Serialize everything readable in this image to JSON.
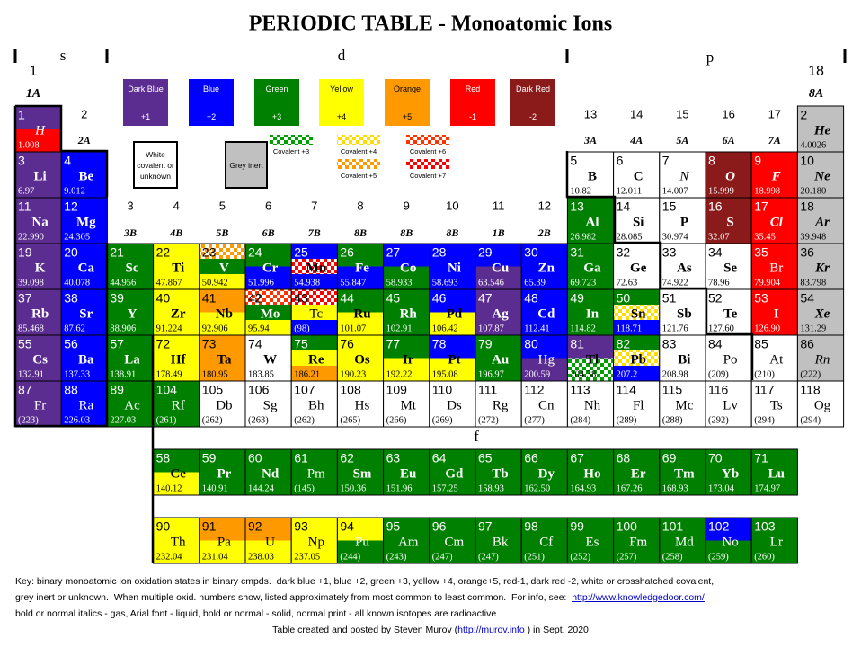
{
  "title": "PERIODIC TABLE - Monoatomic Ions",
  "blocks": [
    "s",
    "d",
    "p",
    "f"
  ],
  "group_numbers": [
    1,
    2,
    3,
    4,
    5,
    6,
    7,
    8,
    9,
    10,
    11,
    12,
    13,
    14,
    15,
    16,
    17,
    18
  ],
  "group_letters": [
    "1A",
    "2A",
    "3B",
    "4B",
    "5B",
    "6B",
    "7B",
    "8B",
    "8B",
    "8B",
    "1B",
    "2B",
    "3A",
    "4A",
    "5A",
    "6A",
    "7A",
    "8A"
  ],
  "legend": [
    {
      "name": "Dark Blue",
      "charge": "+1",
      "color": "#5c2d91"
    },
    {
      "name": "Blue",
      "charge": "+2",
      "color": "#0000ff"
    },
    {
      "name": "Green",
      "charge": "+3",
      "color": "#008000"
    },
    {
      "name": "Yellow",
      "charge": "+4",
      "color": "#ffff00"
    },
    {
      "name": "Orange",
      "charge": "+5",
      "color": "#ff9900"
    },
    {
      "name": "Red",
      "charge": "-1",
      "color": "#ff0000"
    },
    {
      "name": "Dark Red",
      "charge": "-2",
      "color": "#8b1a1a"
    }
  ],
  "legend_other": [
    {
      "name": "White covalent or unknown",
      "color": "#ffffff"
    },
    {
      "name": "Grey inert",
      "color": "#c0c0c0"
    }
  ],
  "covalent": [
    {
      "name": "Covalent +3",
      "color": "#00a000"
    },
    {
      "name": "Covalent +4",
      "color": "#ffdd00"
    },
    {
      "name": "Covalent +6",
      "color": "#ff3300"
    },
    {
      "name": "Covalent +5",
      "color": "#ff9900"
    },
    {
      "name": "Covalent +7",
      "color": "#ff0000"
    }
  ],
  "elements": [
    {
      "n": 1,
      "s": "H",
      "m": "1.008",
      "c": [
        "#5c2d91",
        "#ff0000"
      ],
      "f": "i"
    },
    {
      "n": 2,
      "s": "He",
      "m": "4.0026",
      "c": [
        "#c0c0c0"
      ],
      "f": "bi"
    },
    {
      "n": 3,
      "s": "Li",
      "m": "6.97",
      "c": [
        "#5c2d91"
      ],
      "f": "b"
    },
    {
      "n": 4,
      "s": "Be",
      "m": "9.012",
      "c": [
        "#0000ff"
      ],
      "f": "b"
    },
    {
      "n": 5,
      "s": "B",
      "m": "10.82",
      "c": [
        "#ffffff"
      ],
      "f": "b"
    },
    {
      "n": 6,
      "s": "C",
      "m": "12.011",
      "c": [
        "#ffffff"
      ],
      "f": "b"
    },
    {
      "n": 7,
      "s": "N",
      "m": "14.007",
      "c": [
        "#ffffff"
      ],
      "f": "i"
    },
    {
      "n": 8,
      "s": "O",
      "m": "15.999",
      "c": [
        "#8b1a1a"
      ],
      "f": "bi"
    },
    {
      "n": 9,
      "s": "F",
      "m": "18.998",
      "c": [
        "#ff0000"
      ],
      "f": "bi"
    },
    {
      "n": 10,
      "s": "Ne",
      "m": "20.180",
      "c": [
        "#c0c0c0"
      ],
      "f": "bi"
    },
    {
      "n": 11,
      "s": "Na",
      "m": "22.990",
      "c": [
        "#5c2d91"
      ],
      "f": "b"
    },
    {
      "n": 12,
      "s": "Mg",
      "m": "24.305",
      "c": [
        "#0000ff"
      ],
      "f": "b"
    },
    {
      "n": 13,
      "s": "Al",
      "m": "26.982",
      "c": [
        "#008000"
      ],
      "f": "b"
    },
    {
      "n": 14,
      "s": "Si",
      "m": "28.085",
      "c": [
        "#ffffff"
      ],
      "f": "b"
    },
    {
      "n": 15,
      "s": "P",
      "m": "30.974",
      "c": [
        "#ffffff"
      ],
      "f": "b"
    },
    {
      "n": 16,
      "s": "S",
      "m": "32.07",
      "c": [
        "#8b1a1a"
      ],
      "f": "b"
    },
    {
      "n": 17,
      "s": "Cl",
      "m": "35.45",
      "c": [
        "#ff0000"
      ],
      "f": "bi"
    },
    {
      "n": 18,
      "s": "Ar",
      "m": "39.948",
      "c": [
        "#c0c0c0"
      ],
      "f": "bi"
    },
    {
      "n": 19,
      "s": "K",
      "m": "39.098",
      "c": [
        "#5c2d91"
      ],
      "f": "b"
    },
    {
      "n": 20,
      "s": "Ca",
      "m": "40.078",
      "c": [
        "#0000ff"
      ],
      "f": "b"
    },
    {
      "n": 21,
      "s": "Sc",
      "m": "44.956",
      "c": [
        "#008000"
      ],
      "f": "b"
    },
    {
      "n": 22,
      "s": "Ti",
      "m": "47.867",
      "c": [
        "#ffff00"
      ],
      "f": "b"
    },
    {
      "n": 23,
      "s": "V",
      "m": "50.942",
      "c": [
        {
          "hatch": "#ff9900"
        },
        "#008000",
        "#ffff00"
      ],
      "f": "b"
    },
    {
      "n": 24,
      "s": "Cr",
      "m": "51.996",
      "c": [
        "#008000",
        "#0000ff"
      ],
      "f": "b"
    },
    {
      "n": 25,
      "s": "Mn",
      "m": "54.938",
      "c": [
        "#0000ff",
        {
          "hatch": "#ff0000"
        },
        "#0000ff"
      ],
      "f": "b"
    },
    {
      "n": 26,
      "s": "Fe",
      "m": "55.847",
      "c": [
        "#008000",
        "#0000ff"
      ],
      "f": "b"
    },
    {
      "n": 27,
      "s": "Co",
      "m": "58.933",
      "c": [
        "#0000ff",
        "#008000"
      ],
      "f": "b"
    },
    {
      "n": 28,
      "s": "Ni",
      "m": "58.693",
      "c": [
        "#0000ff"
      ],
      "f": "b"
    },
    {
      "n": 29,
      "s": "Cu",
      "m": "63.546",
      "c": [
        "#0000ff",
        "#5c2d91"
      ],
      "f": "b"
    },
    {
      "n": 30,
      "s": "Zn",
      "m": "65.39",
      "c": [
        "#0000ff"
      ],
      "f": "b"
    },
    {
      "n": 31,
      "s": "Ga",
      "m": "69.723",
      "c": [
        "#008000"
      ],
      "f": "b"
    },
    {
      "n": 32,
      "s": "Ge",
      "m": "72.63",
      "c": [
        "#ffffff"
      ],
      "f": "b"
    },
    {
      "n": 33,
      "s": "As",
      "m": "74.922",
      "c": [
        "#ffffff"
      ],
      "f": "b"
    },
    {
      "n": 34,
      "s": "Se",
      "m": "78.96",
      "c": [
        "#ffffff"
      ],
      "f": "b"
    },
    {
      "n": 35,
      "s": "Br",
      "m": "79.904",
      "c": [
        "#ff0000"
      ]
    },
    {
      "n": 36,
      "s": "Kr",
      "m": "83.798",
      "c": [
        "#c0c0c0"
      ],
      "f": "bi"
    },
    {
      "n": 37,
      "s": "Rb",
      "m": "85.468",
      "c": [
        "#5c2d91"
      ],
      "f": "b"
    },
    {
      "n": 38,
      "s": "Sr",
      "m": "87.62",
      "c": [
        "#0000ff"
      ],
      "f": "b"
    },
    {
      "n": 39,
      "s": "Y",
      "m": "88.906",
      "c": [
        "#008000"
      ],
      "f": "b"
    },
    {
      "n": 40,
      "s": "Zr",
      "m": "91.224",
      "c": [
        "#ffff00"
      ],
      "f": "b"
    },
    {
      "n": 41,
      "s": "Nb",
      "m": "92.906",
      "c": [
        "#ff9900",
        "#ffff00"
      ],
      "f": "b"
    },
    {
      "n": 42,
      "s": "Mo",
      "m": "95.94",
      "c": [
        {
          "hatch": "#ff3300"
        },
        "#008000",
        "#ffff00"
      ],
      "f": "b"
    },
    {
      "n": 43,
      "s": "Tc",
      "m": "(98)",
      "c": [
        {
          "hatch": "#ff0000"
        },
        "#ffff00",
        "#0000ff"
      ]
    },
    {
      "n": 44,
      "s": "Ru",
      "m": "101.07",
      "c": [
        "#008000",
        "#ffff00"
      ],
      "f": "b"
    },
    {
      "n": 45,
      "s": "Rh",
      "m": "102.91",
      "c": [
        "#008000"
      ],
      "f": "b"
    },
    {
      "n": 46,
      "s": "Pd",
      "m": "106.42",
      "c": [
        "#0000ff",
        "#ffff00"
      ],
      "f": "b"
    },
    {
      "n": 47,
      "s": "Ag",
      "m": "107.87",
      "c": [
        "#5c2d91"
      ],
      "f": "b"
    },
    {
      "n": 48,
      "s": "Cd",
      "m": "112.41",
      "c": [
        "#0000ff"
      ],
      "f": "b"
    },
    {
      "n": 49,
      "s": "In",
      "m": "114.82",
      "c": [
        "#008000"
      ],
      "f": "b"
    },
    {
      "n": 50,
      "s": "Sn",
      "m": "118.71",
      "c": [
        "#008000",
        {
          "hatch": "#ffdd00"
        },
        "#0000ff"
      ],
      "f": "b"
    },
    {
      "n": 51,
      "s": "Sb",
      "m": "121.76",
      "c": [
        "#ffffff"
      ],
      "f": "b"
    },
    {
      "n": 52,
      "s": "Te",
      "m": "127.60",
      "c": [
        "#ffffff"
      ],
      "f": "b"
    },
    {
      "n": 53,
      "s": "I",
      "m": "126.90",
      "c": [
        "#ff0000"
      ],
      "f": "b"
    },
    {
      "n": 54,
      "s": "Xe",
      "m": "131.29",
      "c": [
        "#c0c0c0"
      ],
      "f": "bi"
    },
    {
      "n": 55,
      "s": "Cs",
      "m": "132.91",
      "c": [
        "#5c2d91"
      ],
      "f": "b"
    },
    {
      "n": 56,
      "s": "Ba",
      "m": "137.33",
      "c": [
        "#0000ff"
      ],
      "f": "b"
    },
    {
      "n": 57,
      "s": "La",
      "m": "138.91",
      "c": [
        "#008000"
      ],
      "f": "b"
    },
    {
      "n": 58,
      "s": "Ce",
      "m": "140.12",
      "c": [
        "#008000",
        "#ffff00"
      ],
      "f": "b"
    },
    {
      "n": 59,
      "s": "Pr",
      "m": "140.91",
      "c": [
        "#008000"
      ],
      "f": "b"
    },
    {
      "n": 60,
      "s": "Nd",
      "m": "144.24",
      "c": [
        "#008000"
      ],
      "f": "b"
    },
    {
      "n": 61,
      "s": "Pm",
      "m": "(145)",
      "c": [
        "#008000"
      ]
    },
    {
      "n": 62,
      "s": "Sm",
      "m": "150.36",
      "c": [
        "#008000"
      ],
      "f": "b"
    },
    {
      "n": 63,
      "s": "Eu",
      "m": "151.96",
      "c": [
        "#008000"
      ],
      "f": "b"
    },
    {
      "n": 64,
      "s": "Gd",
      "m": "157.25",
      "c": [
        "#008000"
      ],
      "f": "b"
    },
    {
      "n": 65,
      "s": "Tb",
      "m": "158.93",
      "c": [
        "#008000"
      ],
      "f": "b"
    },
    {
      "n": 66,
      "s": "Dy",
      "m": "162.50",
      "c": [
        "#008000"
      ],
      "f": "b"
    },
    {
      "n": 67,
      "s": "Ho",
      "m": "164.93",
      "c": [
        "#008000"
      ],
      "f": "b"
    },
    {
      "n": 68,
      "s": "Er",
      "m": "167.26",
      "c": [
        "#008000"
      ],
      "f": "b"
    },
    {
      "n": 69,
      "s": "Tm",
      "m": "168.93",
      "c": [
        "#008000"
      ],
      "f": "b"
    },
    {
      "n": 70,
      "s": "Yb",
      "m": "173.04",
      "c": [
        "#008000"
      ],
      "f": "b"
    },
    {
      "n": 71,
      "s": "Lu",
      "m": "174.97",
      "c": [
        "#008000"
      ],
      "f": "b"
    },
    {
      "n": 72,
      "s": "Hf",
      "m": "178.49",
      "c": [
        "#ffff00"
      ],
      "f": "b"
    },
    {
      "n": 73,
      "s": "Ta",
      "m": "180.95",
      "c": [
        "#ff9900"
      ],
      "f": "b"
    },
    {
      "n": 74,
      "s": "W",
      "m": "183.85",
      "c": [
        "#ffffff"
      ],
      "f": "b"
    },
    {
      "n": 75,
      "s": "Re",
      "m": "186.21",
      "c": [
        "#008000",
        "#ffff00",
        "#ff9900"
      ],
      "f": "b"
    },
    {
      "n": 76,
      "s": "Os",
      "m": "190.23",
      "c": [
        "#ffff00"
      ],
      "f": "b"
    },
    {
      "n": 77,
      "s": "Ir",
      "m": "192.22",
      "c": [
        "#008000",
        "#ffff00"
      ],
      "f": "b"
    },
    {
      "n": 78,
      "s": "Pt",
      "m": "195.08",
      "c": [
        "#0000ff",
        "#ffff00"
      ],
      "f": "b"
    },
    {
      "n": 79,
      "s": "Au",
      "m": "196.97",
      "c": [
        "#008000"
      ],
      "f": "b"
    },
    {
      "n": 80,
      "s": "Hg",
      "m": "200.59",
      "c": [
        "#0000ff",
        "#5c2d91"
      ]
    },
    {
      "n": 81,
      "s": "Tl",
      "m": "204.38",
      "c": [
        "#5c2d91",
        {
          "hatch": "#00a000"
        }
      ],
      "f": "b"
    },
    {
      "n": 82,
      "s": "Pb",
      "m": "207.2",
      "c": [
        "#008000",
        {
          "hatch": "#ffdd00"
        },
        "#0000ff"
      ],
      "f": "b"
    },
    {
      "n": 83,
      "s": "Bi",
      "m": "208.98",
      "c": [
        "#ffffff"
      ],
      "f": "b"
    },
    {
      "n": 84,
      "s": "Po",
      "m": "(209)",
      "c": [
        "#ffffff"
      ]
    },
    {
      "n": 85,
      "s": "At",
      "m": "(210)",
      "c": [
        "#ffffff"
      ]
    },
    {
      "n": 86,
      "s": "Rn",
      "m": "(222)",
      "c": [
        "#c0c0c0"
      ],
      "f": "i"
    },
    {
      "n": 87,
      "s": "Fr",
      "m": "(223)",
      "c": [
        "#5c2d91"
      ]
    },
    {
      "n": 88,
      "s": "Ra",
      "m": "226.03",
      "c": [
        "#0000ff"
      ]
    },
    {
      "n": 89,
      "s": "Ac",
      "m": "227.03",
      "c": [
        "#008000"
      ]
    },
    {
      "n": 90,
      "s": "Th",
      "m": "232.04",
      "c": [
        "#ffff00"
      ]
    },
    {
      "n": 91,
      "s": "Pa",
      "m": "231.04",
      "c": [
        "#ff9900",
        "#ffff00"
      ]
    },
    {
      "n": 92,
      "s": "U",
      "m": "238.03",
      "c": [
        "#ff9900",
        "#ffff00"
      ]
    },
    {
      "n": 93,
      "s": "Np",
      "m": "237.05",
      "c": [
        "#ffff00"
      ]
    },
    {
      "n": 94,
      "s": "Pu",
      "m": "(244)",
      "c": [
        "#ffff00",
        "#008000"
      ]
    },
    {
      "n": 95,
      "s": "Am",
      "m": "(243)",
      "c": [
        "#008000"
      ]
    },
    {
      "n": 96,
      "s": "Cm",
      "m": "(247)",
      "c": [
        "#008000"
      ]
    },
    {
      "n": 97,
      "s": "Bk",
      "m": "(247)",
      "c": [
        "#008000"
      ]
    },
    {
      "n": 98,
      "s": "Cf",
      "m": "(251)",
      "c": [
        "#008000"
      ]
    },
    {
      "n": 99,
      "s": "Es",
      "m": "(252)",
      "c": [
        "#008000"
      ]
    },
    {
      "n": 100,
      "s": "Fm",
      "m": "(257)",
      "c": [
        "#008000"
      ]
    },
    {
      "n": 101,
      "s": "Md",
      "m": "(258)",
      "c": [
        "#008000"
      ]
    },
    {
      "n": 102,
      "s": "No",
      "m": "(259)",
      "c": [
        "#0000ff",
        "#008000"
      ]
    },
    {
      "n": 103,
      "s": "Lr",
      "m": "(260)",
      "c": [
        "#008000"
      ]
    },
    {
      "n": 104,
      "s": "Rf",
      "m": "(261)",
      "c": [
        "#008000"
      ]
    },
    {
      "n": 105,
      "s": "Db",
      "m": "(262)",
      "c": [
        "#ffffff"
      ]
    },
    {
      "n": 106,
      "s": "Sg",
      "m": "(263)",
      "c": [
        "#ffffff"
      ]
    },
    {
      "n": 107,
      "s": "Bh",
      "m": "(262)",
      "c": [
        "#ffffff"
      ]
    },
    {
      "n": 108,
      "s": "Hs",
      "m": "(265)",
      "c": [
        "#ffffff"
      ]
    },
    {
      "n": 109,
      "s": "Mt",
      "m": "(266)",
      "c": [
        "#ffffff"
      ]
    },
    {
      "n": 110,
      "s": "Ds",
      "m": "(269)",
      "c": [
        "#ffffff"
      ]
    },
    {
      "n": 111,
      "s": "Rg",
      "m": "(272)",
      "c": [
        "#ffffff"
      ]
    },
    {
      "n": 112,
      "s": "Cn",
      "m": "(277)",
      "c": [
        "#ffffff"
      ]
    },
    {
      "n": 113,
      "s": "Nh",
      "m": "(284)",
      "c": [
        "#ffffff"
      ]
    },
    {
      "n": 114,
      "s": "Fl",
      "m": "(289)",
      "c": [
        "#ffffff"
      ]
    },
    {
      "n": 115,
      "s": "Mc",
      "m": "(288)",
      "c": [
        "#ffffff"
      ]
    },
    {
      "n": 116,
      "s": "Lv",
      "m": "(292)",
      "c": [
        "#ffffff"
      ]
    },
    {
      "n": 117,
      "s": "Ts",
      "m": "(294)",
      "c": [
        "#ffffff"
      ]
    },
    {
      "n": 118,
      "s": "Og",
      "m": "(294)",
      "c": [
        "#ffffff"
      ]
    }
  ],
  "key": {
    "line1": "Key: binary monoatomic ion oxidation states in binary cmpds.  dark blue +1, blue +2, green +3, yellow +4, orange+5, red-1, dark red -2, white or crosshatched covalent,",
    "line2": "grey inert or unknown.  When multiple oxid. numbers show, listed approximately from most common to least common.  For info, see:",
    "link1": "http://www.knowledgedoor.com/",
    "line3": "bold or normal italics - gas, Arial font - liquid, bold or normal - solid, normal print - all known isotopes are radioactive",
    "line4a": "Table created and posted by Steven Murov (",
    "link2": "http://murov.info",
    "line4b": " ) in Sept. 2020"
  }
}
